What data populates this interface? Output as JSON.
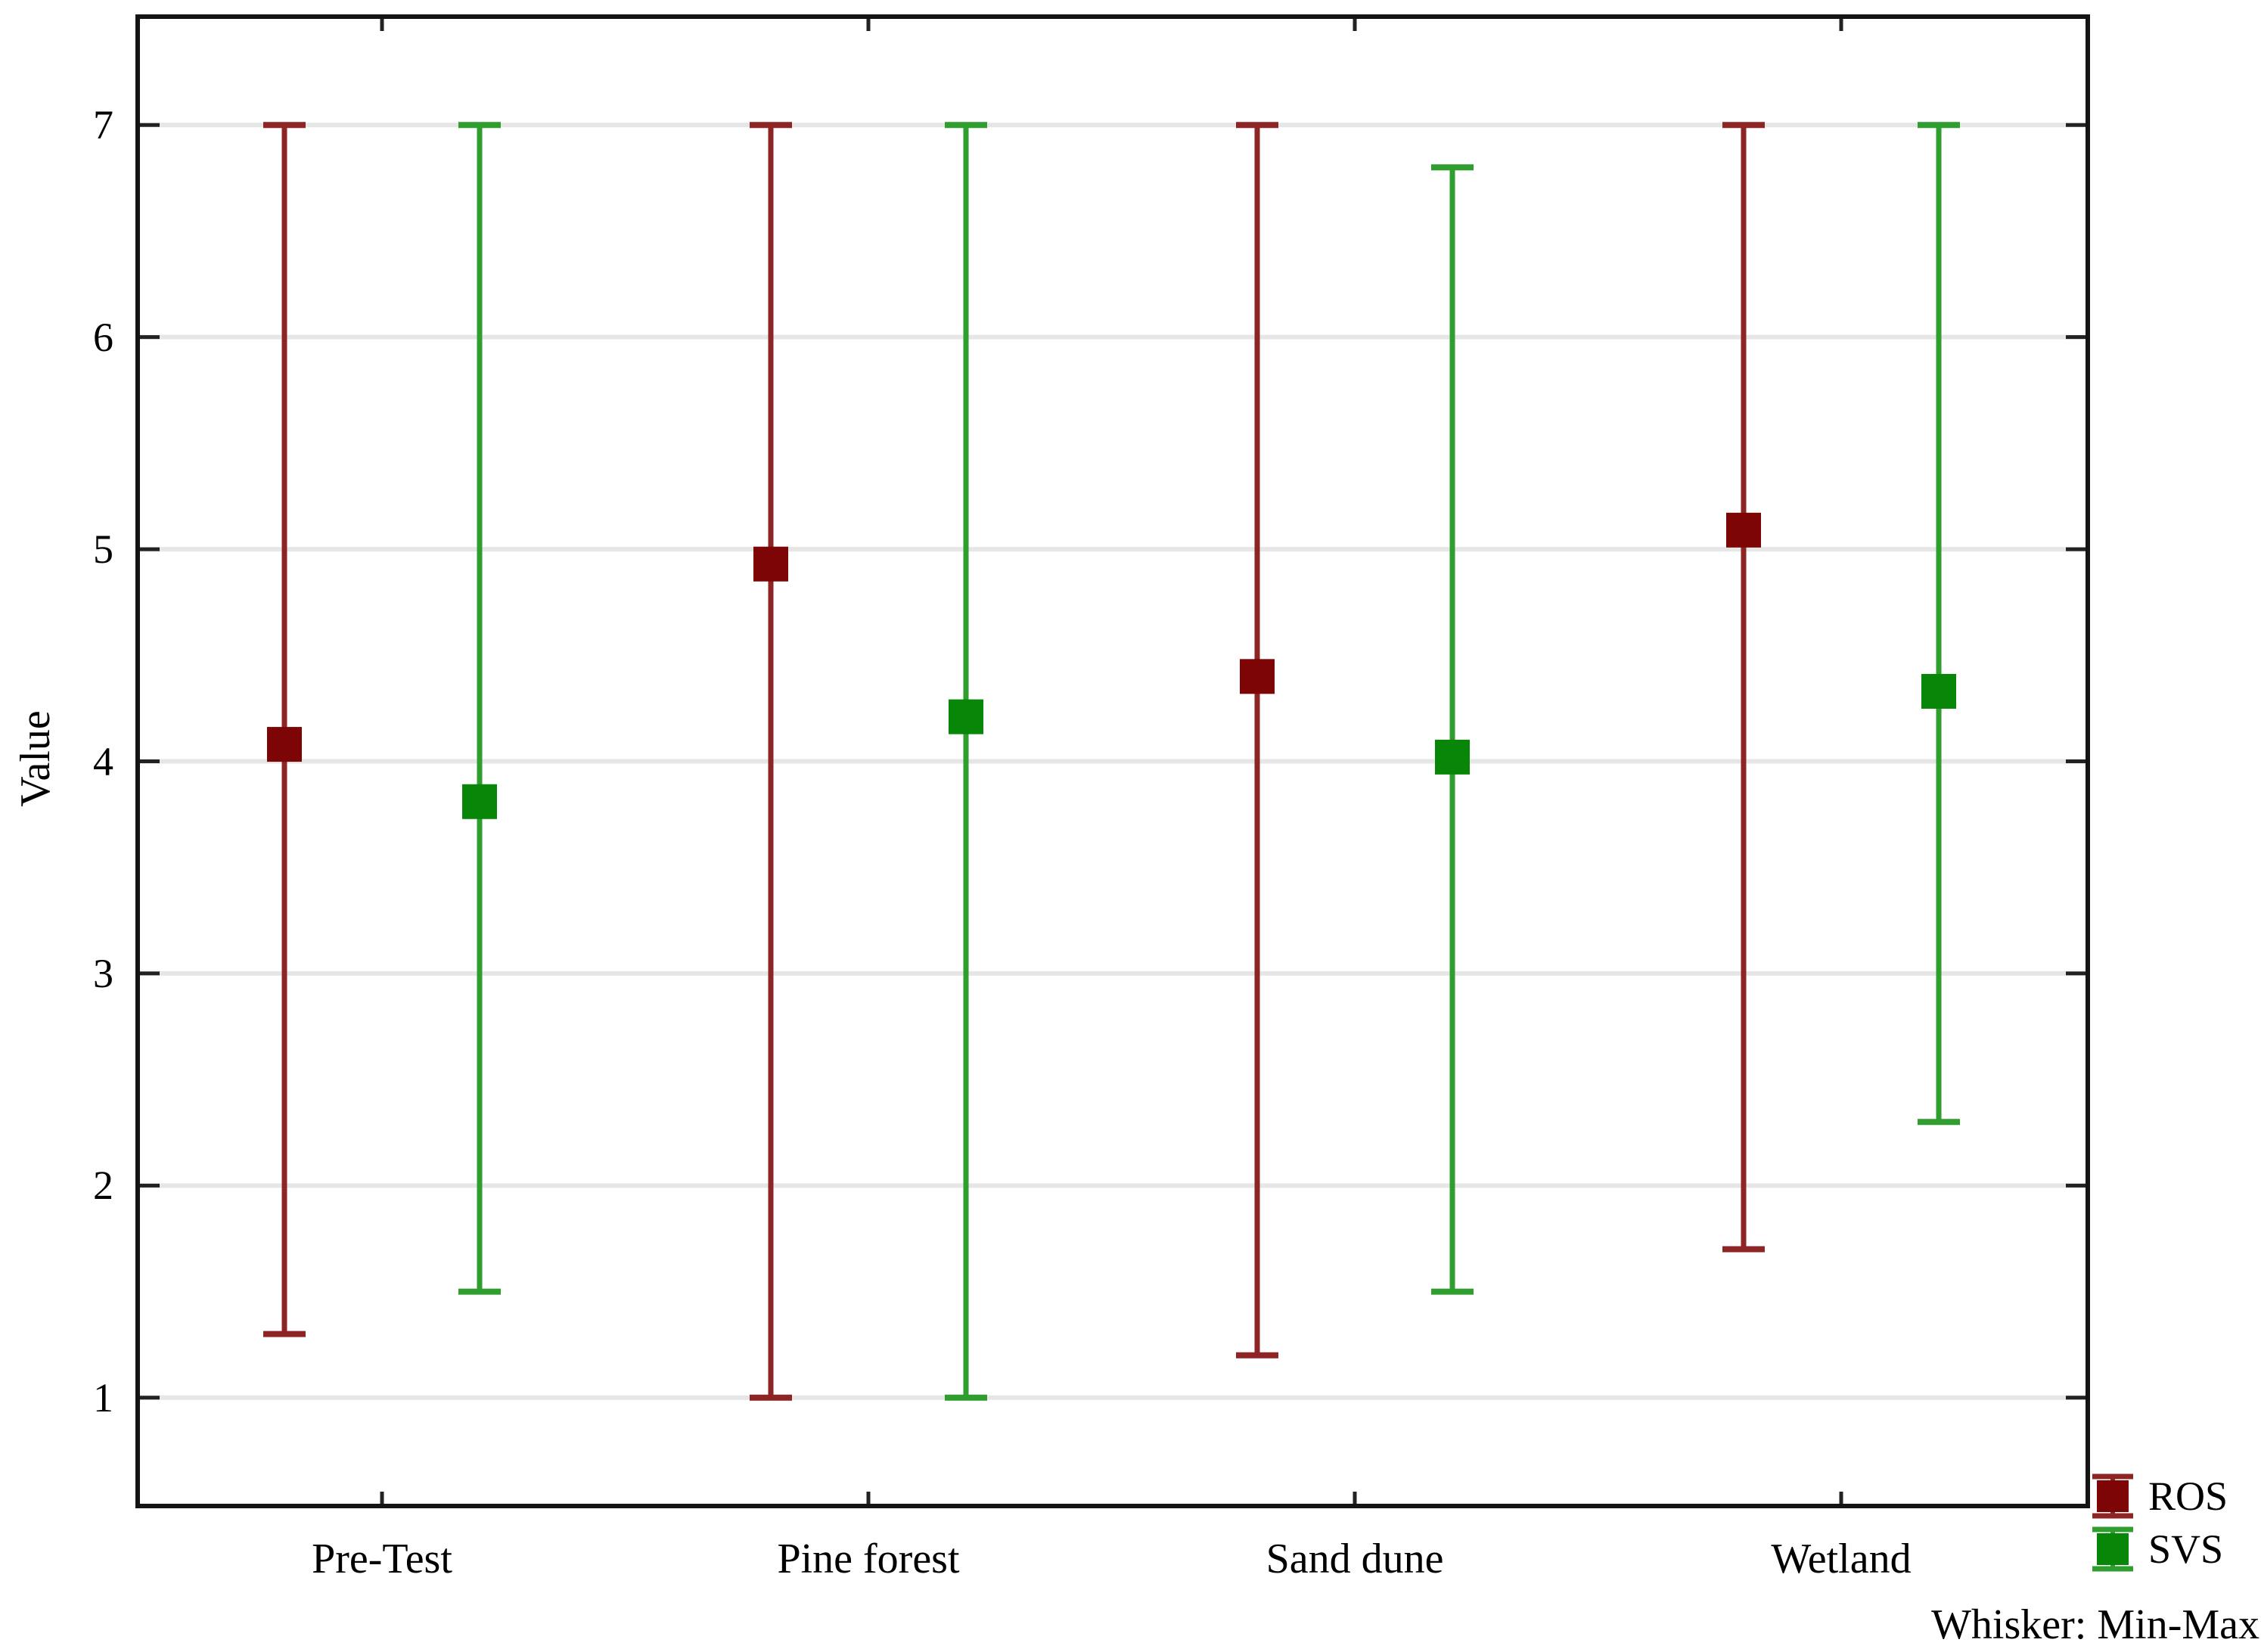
{
  "figure": {
    "background": "#ffffff",
    "frame_color": "#141414",
    "grid_color": "#e6e6e6"
  },
  "chart_data": {
    "type": "box-whisker-mean",
    "title": "",
    "ylabel": "Value",
    "xlabel": "",
    "categories": [
      "Pre-Test",
      "Pine forest",
      "Sand dune",
      "Wetland"
    ],
    "yticks": [
      1,
      2,
      3,
      4,
      5,
      6,
      7
    ],
    "ylim": [
      0.5,
      7.5
    ],
    "grid": "horizontal",
    "legend_position": "bottom-right-outside",
    "whisker_note": "Whisker: Min-Max",
    "series": [
      {
        "name": "ROS",
        "marker": "square",
        "color_fill": "#7D0505",
        "color_line": "#8E2525",
        "means": [
          4.08,
          4.93,
          4.4,
          5.09
        ],
        "min": [
          1.3,
          1.0,
          1.2,
          1.7
        ],
        "max": [
          7.0,
          7.0,
          7.0,
          7.0
        ]
      },
      {
        "name": "SVS",
        "marker": "square",
        "color_fill": "#088608",
        "color_line": "#2F9E2F",
        "means": [
          3.81,
          4.21,
          4.02,
          4.33
        ],
        "min": [
          1.5,
          1.0,
          1.5,
          2.3
        ],
        "max": [
          7.0,
          7.0,
          6.8,
          7.0
        ]
      }
    ]
  }
}
